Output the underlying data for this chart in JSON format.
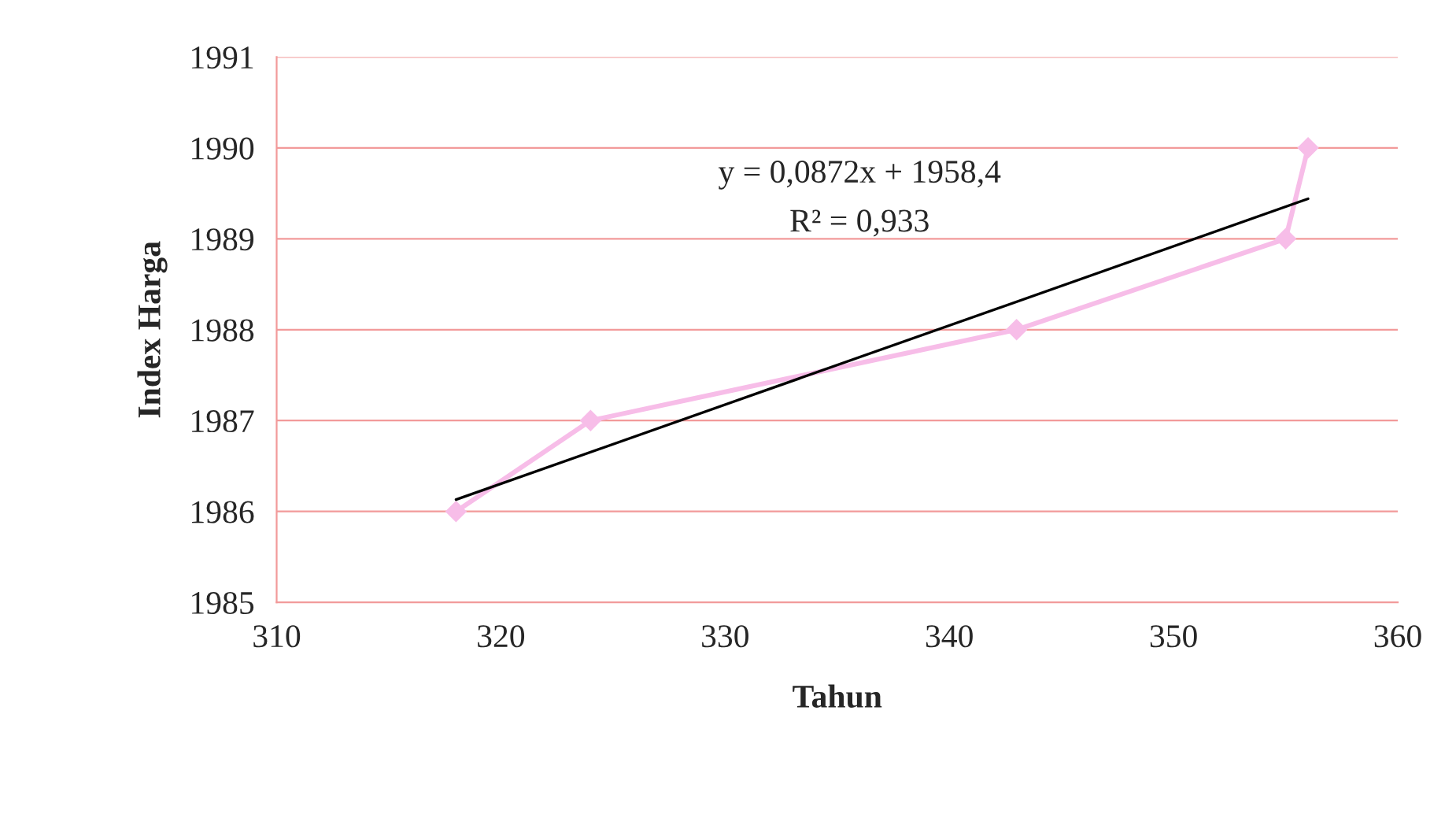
{
  "chart_data": {
    "type": "line",
    "xlabel": "Tahun",
    "ylabel": "Index Harga",
    "series": [
      {
        "color": "#f7bde8",
        "x": [
          318,
          324,
          343,
          355,
          356
        ],
        "values": [
          1986,
          1987,
          1988,
          1989,
          1990
        ],
        "marker": "diamond"
      },
      {
        "color": "#000000",
        "x": [
          318,
          356
        ],
        "values": [
          1986.13,
          1989.44
        ],
        "marker": "none"
      }
    ],
    "annotations": [
      "y = 0,0872x + 1958,4",
      "R² = 0,933"
    ],
    "xlim": [
      310,
      360
    ],
    "xticks": [
      310,
      320,
      330,
      340,
      350,
      360
    ],
    "ylim": [
      1985,
      1991
    ],
    "yticks": [
      1985,
      1986,
      1987,
      1988,
      1989,
      1990,
      1991
    ],
    "grid": "y"
  }
}
